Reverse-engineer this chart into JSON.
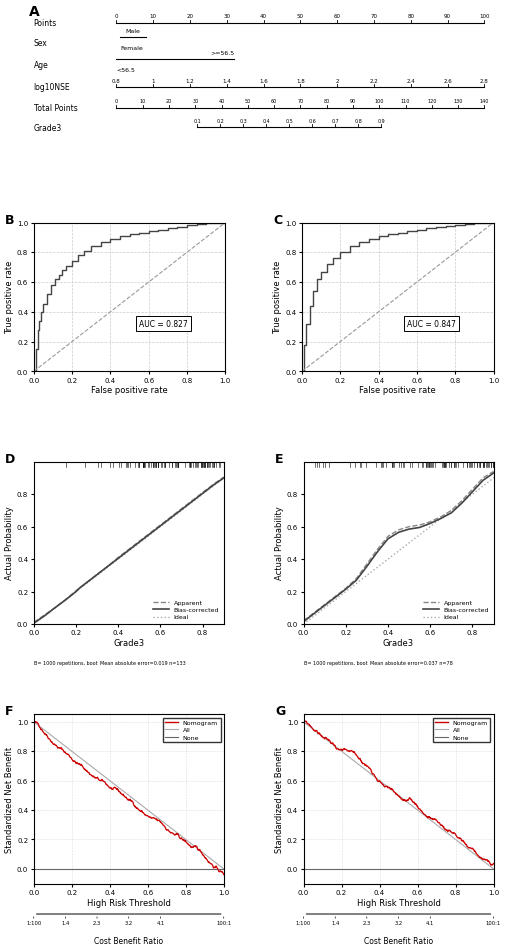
{
  "panel_labels": [
    "A",
    "B",
    "C",
    "D",
    "E",
    "F",
    "G"
  ],
  "nomogram": {
    "rows": [
      "Points",
      "Sex",
      "Age",
      "log10NSE",
      "Total Points",
      "Grade3"
    ],
    "points_ticks": [
      0,
      10,
      20,
      30,
      40,
      50,
      60,
      70,
      80,
      90,
      100
    ],
    "log10nse_ticks": [
      0.8,
      1.0,
      1.2,
      1.4,
      1.6,
      1.8,
      2.0,
      2.2,
      2.4,
      2.6,
      2.8
    ],
    "total_points_ticks": [
      0,
      10,
      20,
      30,
      40,
      50,
      60,
      70,
      80,
      90,
      100,
      110,
      120,
      130,
      140
    ],
    "grade3_ticks": [
      0.1,
      0.2,
      0.3,
      0.4,
      0.5,
      0.6,
      0.7,
      0.8,
      0.9
    ]
  },
  "roc_B": {
    "auc": "AUC = 0.827",
    "xlabel": "False positive rate",
    "ylabel": "True positive rate",
    "fpr": [
      0.0,
      0.01,
      0.02,
      0.03,
      0.04,
      0.05,
      0.07,
      0.09,
      0.11,
      0.13,
      0.15,
      0.17,
      0.2,
      0.23,
      0.26,
      0.3,
      0.35,
      0.4,
      0.45,
      0.5,
      0.55,
      0.6,
      0.65,
      0.7,
      0.75,
      0.8,
      0.85,
      0.9,
      0.95,
      1.0
    ],
    "tpr": [
      0.0,
      0.15,
      0.28,
      0.34,
      0.4,
      0.45,
      0.52,
      0.58,
      0.62,
      0.65,
      0.68,
      0.71,
      0.74,
      0.78,
      0.81,
      0.84,
      0.87,
      0.89,
      0.91,
      0.92,
      0.93,
      0.94,
      0.95,
      0.96,
      0.97,
      0.98,
      0.99,
      0.995,
      1.0,
      1.0
    ]
  },
  "roc_C": {
    "auc": "AUC = 0.847",
    "xlabel": "False positive rate",
    "ylabel": "True positive rate",
    "fpr": [
      0.0,
      0.01,
      0.02,
      0.04,
      0.06,
      0.08,
      0.1,
      0.13,
      0.16,
      0.2,
      0.25,
      0.3,
      0.35,
      0.4,
      0.45,
      0.5,
      0.55,
      0.6,
      0.65,
      0.7,
      0.75,
      0.8,
      0.85,
      0.9,
      1.0
    ],
    "tpr": [
      0.0,
      0.18,
      0.32,
      0.44,
      0.54,
      0.62,
      0.67,
      0.72,
      0.76,
      0.8,
      0.84,
      0.87,
      0.89,
      0.91,
      0.92,
      0.93,
      0.94,
      0.95,
      0.96,
      0.97,
      0.975,
      0.98,
      0.99,
      0.995,
      1.0
    ]
  },
  "cal_D": {
    "xlabel": "Grade3",
    "ylabel": "Actual Probability",
    "footnote_left": "B= 1000 repetitions, boot",
    "footnote_right": "Mean absolute error=0.019 n=133",
    "apparent_x": [
      0.0,
      0.05,
      0.1,
      0.15,
      0.2,
      0.25,
      0.3,
      0.35,
      0.4,
      0.45,
      0.5,
      0.55,
      0.6,
      0.65,
      0.7,
      0.75,
      0.8,
      0.85,
      0.9
    ],
    "apparent_y": [
      0.01,
      0.055,
      0.1,
      0.15,
      0.205,
      0.255,
      0.305,
      0.355,
      0.41,
      0.46,
      0.51,
      0.56,
      0.61,
      0.66,
      0.71,
      0.76,
      0.81,
      0.86,
      0.905
    ],
    "bias_x": [
      0.0,
      0.05,
      0.1,
      0.15,
      0.2,
      0.22,
      0.25,
      0.28,
      0.3,
      0.35,
      0.4,
      0.45,
      0.5,
      0.55,
      0.6,
      0.65,
      0.7,
      0.75,
      0.8,
      0.85,
      0.9
    ],
    "bias_y": [
      0.005,
      0.05,
      0.1,
      0.148,
      0.2,
      0.225,
      0.255,
      0.285,
      0.305,
      0.355,
      0.405,
      0.455,
      0.505,
      0.555,
      0.605,
      0.655,
      0.705,
      0.755,
      0.805,
      0.855,
      0.9
    ]
  },
  "cal_E": {
    "xlabel": "Grade3",
    "ylabel": "Actual Probability",
    "footnote_left": "B= 1000 repetitions, boot",
    "footnote_right": "Mean absolute error=0.037 n=78",
    "apparent_x": [
      0.0,
      0.05,
      0.1,
      0.15,
      0.2,
      0.25,
      0.3,
      0.35,
      0.4,
      0.45,
      0.5,
      0.55,
      0.6,
      0.65,
      0.7,
      0.75,
      0.8,
      0.85,
      0.9
    ],
    "apparent_y": [
      0.02,
      0.07,
      0.12,
      0.17,
      0.22,
      0.28,
      0.37,
      0.46,
      0.54,
      0.58,
      0.6,
      0.61,
      0.63,
      0.66,
      0.7,
      0.76,
      0.83,
      0.9,
      0.94
    ],
    "bias_x": [
      0.0,
      0.05,
      0.1,
      0.15,
      0.2,
      0.25,
      0.3,
      0.35,
      0.4,
      0.45,
      0.5,
      0.55,
      0.6,
      0.65,
      0.7,
      0.75,
      0.8,
      0.85,
      0.9
    ],
    "bias_y": [
      0.015,
      0.065,
      0.115,
      0.165,
      0.215,
      0.27,
      0.355,
      0.445,
      0.525,
      0.565,
      0.585,
      0.595,
      0.62,
      0.65,
      0.685,
      0.745,
      0.815,
      0.885,
      0.93
    ]
  },
  "dca_F": {
    "xlabel": "High Risk Threshold",
    "ylabel": "Standardized Net Benefit",
    "xlabel2": "Cost Benefit Ratio",
    "x_tick2_positions": [
      0.0,
      0.167,
      0.333,
      0.5,
      0.667,
      0.833,
      1.0
    ],
    "x_tick2_labels": [
      "1:100",
      "1.4",
      "2.3",
      "3.2",
      "4.1",
      "",
      "100:1"
    ]
  },
  "dca_G": {
    "xlabel": "High Risk Threshold",
    "ylabel": "Standardized Net Benefit",
    "xlabel2": "Cost Benefit Ratio",
    "x_tick2_positions": [
      0.0,
      0.167,
      0.333,
      0.5,
      0.667,
      0.833,
      1.0
    ],
    "x_tick2_labels": [
      "1:100",
      "1.4",
      "2.3",
      "3.2",
      "4.1",
      "",
      "100:1"
    ]
  },
  "bg_color": "#ffffff"
}
